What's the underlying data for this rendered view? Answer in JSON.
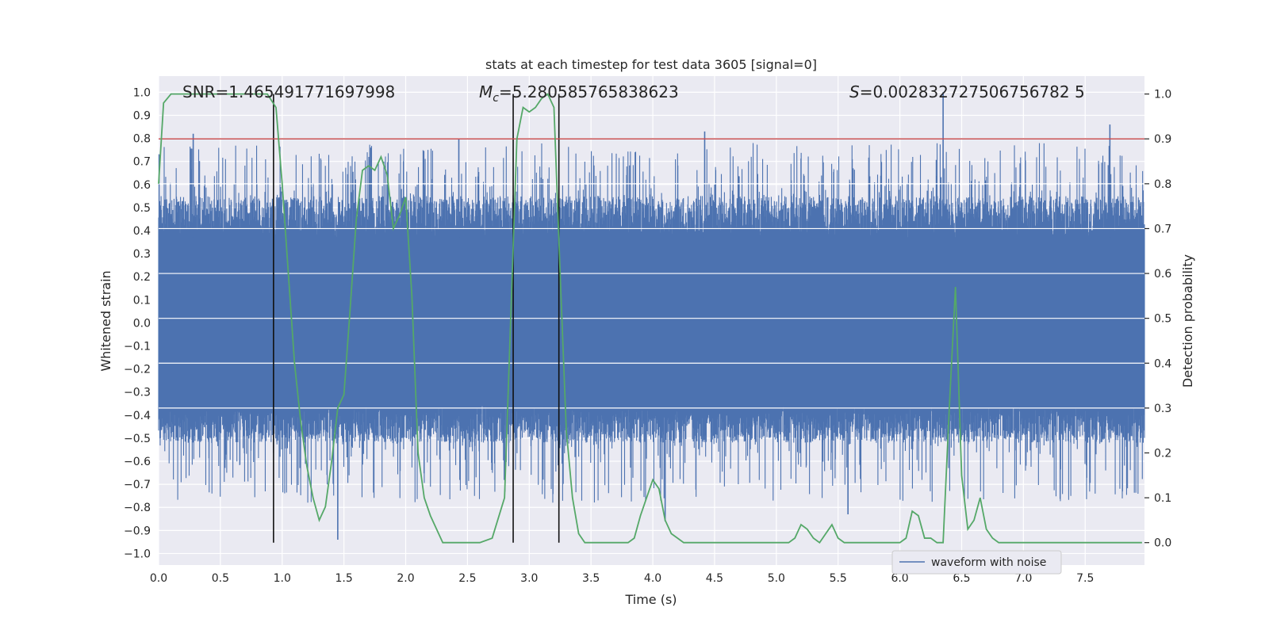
{
  "chart_data": {
    "type": "line",
    "title": "stats at each timestep for test data 3605 [signal=0]",
    "xlabel": "Time (s)",
    "ylabel_left": "Whitened strain",
    "ylabel_right": "Detection probability",
    "xlim": [
      0,
      7.98
    ],
    "ylim_left": [
      -1.05,
      1.07
    ],
    "ylim_right": [
      -0.05,
      1.04
    ],
    "x_ticks": [
      0.0,
      0.5,
      1.0,
      1.5,
      2.0,
      2.5,
      3.0,
      3.5,
      4.0,
      4.5,
      5.0,
      5.5,
      6.0,
      6.5,
      7.0,
      7.5
    ],
    "x_tick_labels": [
      "0.0",
      "0.5",
      "1.0",
      "1.5",
      "2.0",
      "2.5",
      "3.0",
      "3.5",
      "4.0",
      "4.5",
      "5.0",
      "5.5",
      "6.0",
      "6.5",
      "7.0",
      "7.5"
    ],
    "y_left_ticks": [
      1.0,
      0.9,
      0.8,
      0.7,
      0.6,
      0.5,
      0.4,
      0.3,
      0.2,
      0.1,
      0.0,
      -0.1,
      -0.2,
      -0.3,
      -0.4,
      -0.5,
      -0.6,
      -0.7,
      -0.8,
      -0.9,
      -1.0
    ],
    "y_left_tick_labels": [
      "1.0",
      "0.9",
      "0.8",
      "0.7",
      "0.6",
      "0.5",
      "0.4",
      "0.3",
      "0.2",
      "0.1",
      "0.0",
      "−0.1",
      "−0.2",
      "−0.3",
      "−0.4",
      "−0.5",
      "−0.6",
      "−0.7",
      "−0.8",
      "−0.9",
      "−1.0"
    ],
    "y_right_ticks": [
      1.0,
      0.9,
      0.8,
      0.7,
      0.6,
      0.5,
      0.4,
      0.3,
      0.2,
      0.1,
      0.0
    ],
    "y_right_tick_labels": [
      "1.0",
      "0.9",
      "0.8",
      "0.7",
      "0.6",
      "0.5",
      "0.4",
      "0.3",
      "0.2",
      "0.1",
      "0.0"
    ],
    "annotations": {
      "snr": "SNR=1.465491771697998",
      "mc_symbol": "M",
      "mc_sub": "c",
      "mc_value": "=5.280585765838623",
      "s_symbol": "S",
      "s_value": "=0.002832727506756782 5"
    },
    "legend": {
      "position": "lower-right",
      "label": "waveform with noise"
    },
    "grid": true,
    "threshold_line": {
      "y_right": 0.9,
      "color": "#c44e52"
    },
    "vertical_markers_x": [
      0.93,
      2.87,
      3.24
    ],
    "waveform": {
      "name": "waveform with noise",
      "color": "#4c72b0",
      "core_band": [
        -0.36,
        0.37
      ],
      "spike_clip": [
        -0.94,
        1.0
      ],
      "notable_peaks": [
        [
          0.28,
          0.82
        ],
        [
          2.43,
          0.8
        ],
        [
          4.42,
          0.83
        ],
        [
          6.35,
          1.0
        ],
        [
          7.7,
          0.86
        ],
        [
          1.45,
          -0.94
        ],
        [
          4.1,
          -0.86
        ],
        [
          5.58,
          -0.83
        ]
      ]
    },
    "detection_probability": {
      "name": "",
      "color": "#55a868",
      "x": [
        0.0,
        0.04,
        0.1,
        0.2,
        0.4,
        0.6,
        0.8,
        0.88,
        0.95,
        1.0,
        1.05,
        1.1,
        1.15,
        1.2,
        1.25,
        1.3,
        1.35,
        1.4,
        1.45,
        1.5,
        1.55,
        1.6,
        1.65,
        1.7,
        1.75,
        1.8,
        1.85,
        1.9,
        1.95,
        2.0,
        2.05,
        2.1,
        2.15,
        2.2,
        2.25,
        2.3,
        2.35,
        2.4,
        2.45,
        2.5,
        2.6,
        2.7,
        2.8,
        2.85,
        2.9,
        2.95,
        3.0,
        3.05,
        3.1,
        3.15,
        3.2,
        3.25,
        3.3,
        3.35,
        3.4,
        3.45,
        3.5,
        3.55,
        3.6,
        3.7,
        3.8,
        3.85,
        3.9,
        3.95,
        4.0,
        4.05,
        4.1,
        4.15,
        4.2,
        4.25,
        4.3,
        4.4,
        4.5,
        4.6,
        4.7,
        4.8,
        4.9,
        5.0,
        5.1,
        5.15,
        5.2,
        5.25,
        5.3,
        5.35,
        5.4,
        5.45,
        5.5,
        5.55,
        5.6,
        5.65,
        5.7,
        5.8,
        5.9,
        6.0,
        6.05,
        6.1,
        6.15,
        6.2,
        6.25,
        6.3,
        6.35,
        6.4,
        6.45,
        6.5,
        6.55,
        6.6,
        6.65,
        6.7,
        6.75,
        6.8,
        6.85,
        6.9,
        7.0,
        7.1,
        7.2,
        7.4,
        7.6,
        7.8,
        7.96
      ],
      "y": [
        0.8,
        0.98,
        1.0,
        1.0,
        1.0,
        1.0,
        1.0,
        1.0,
        0.97,
        0.8,
        0.6,
        0.4,
        0.27,
        0.17,
        0.1,
        0.05,
        0.08,
        0.18,
        0.3,
        0.33,
        0.52,
        0.72,
        0.83,
        0.84,
        0.83,
        0.86,
        0.82,
        0.7,
        0.73,
        0.77,
        0.55,
        0.2,
        0.1,
        0.06,
        0.03,
        0.0,
        0.0,
        0.0,
        0.0,
        0.0,
        0.0,
        0.01,
        0.1,
        0.5,
        0.9,
        0.97,
        0.96,
        0.97,
        0.99,
        1.0,
        0.97,
        0.6,
        0.25,
        0.1,
        0.02,
        0.0,
        0.0,
        0.0,
        0.0,
        0.0,
        0.0,
        0.01,
        0.06,
        0.1,
        0.14,
        0.12,
        0.05,
        0.02,
        0.01,
        0.0,
        0.0,
        0.0,
        0.0,
        0.0,
        0.0,
        0.0,
        0.0,
        0.0,
        0.0,
        0.01,
        0.04,
        0.03,
        0.01,
        0.0,
        0.02,
        0.04,
        0.01,
        0.0,
        0.0,
        0.0,
        0.0,
        0.0,
        0.0,
        0.0,
        0.01,
        0.07,
        0.06,
        0.01,
        0.01,
        0.0,
        0.0,
        0.3,
        0.57,
        0.15,
        0.03,
        0.05,
        0.1,
        0.03,
        0.01,
        0.0,
        0.0,
        0.0,
        0.0,
        0.0,
        0.0,
        0.0,
        0.0,
        0.0,
        0.0
      ]
    }
  }
}
